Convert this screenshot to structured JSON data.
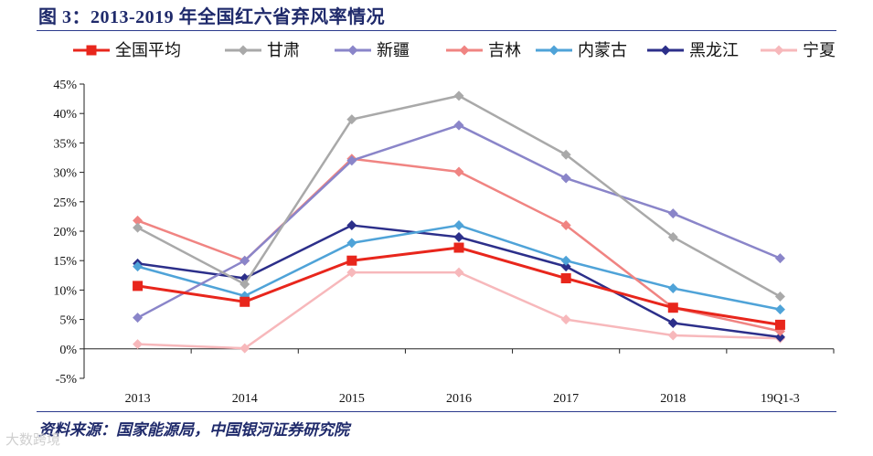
{
  "figure": {
    "title": "图 3：2013-2019 年全国红六省弃风率情况",
    "source": "资料来源：国家能源局，中国银河证券研究院",
    "watermark": "大数跨境"
  },
  "chart_data": {
    "type": "line",
    "categories": [
      "2013",
      "2014",
      "2015",
      "2016",
      "2017",
      "2018",
      "19Q1-3"
    ],
    "ylim": [
      -5,
      45
    ],
    "yticks": [
      -5,
      0,
      5,
      10,
      15,
      20,
      25,
      30,
      35,
      40,
      45
    ],
    "ytick_labels": [
      "-5%",
      "0%",
      "5%",
      "10%",
      "15%",
      "20%",
      "25%",
      "30%",
      "35%",
      "40%",
      "45%"
    ],
    "legend_position": "top",
    "series": [
      {
        "name": "全国平均",
        "color": "#e8261c",
        "marker": "square",
        "values": [
          10.7,
          8.0,
          15.0,
          17.2,
          12.0,
          7.0,
          4.1
        ]
      },
      {
        "name": "甘肃",
        "color": "#a9a9a9",
        "marker": "diamond",
        "values": [
          20.6,
          11.0,
          39.0,
          43.0,
          33.0,
          19.0,
          8.9
        ]
      },
      {
        "name": "新疆",
        "color": "#8a85c9",
        "marker": "diamond",
        "values": [
          5.3,
          15.0,
          32.0,
          38.0,
          29.0,
          23.0,
          15.4
        ]
      },
      {
        "name": "吉林",
        "color": "#f08482",
        "marker": "diamond",
        "values": [
          21.8,
          15.0,
          32.3,
          30.1,
          21.0,
          7.0,
          3.0
        ]
      },
      {
        "name": "内蒙古",
        "color": "#4fa3d8",
        "marker": "diamond",
        "values": [
          14.0,
          9.0,
          18.0,
          21.0,
          15.0,
          10.3,
          6.7
        ]
      },
      {
        "name": "黑龙江",
        "color": "#2c2f8a",
        "marker": "diamond",
        "values": [
          14.5,
          12.0,
          21.0,
          19.0,
          14.0,
          4.4,
          2.0
        ]
      },
      {
        "name": "宁夏",
        "color": "#f7b8bb",
        "marker": "diamond",
        "values": [
          0.8,
          0.1,
          13.0,
          13.0,
          5.0,
          2.3,
          1.8
        ]
      }
    ]
  }
}
